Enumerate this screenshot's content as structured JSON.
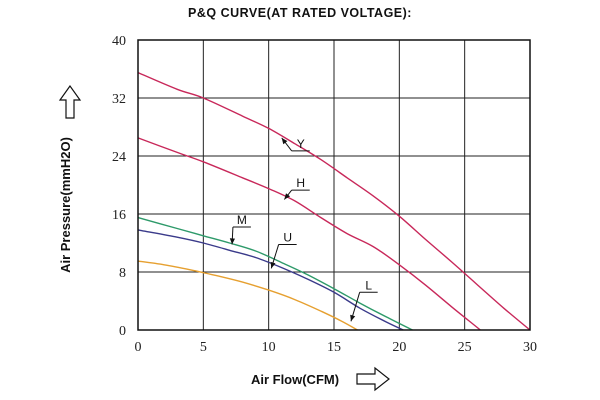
{
  "chart_data": {
    "type": "line",
    "title": "P&Q CURVE(AT RATED VOLTAGE):",
    "xlabel": "Air Flow(CFM)",
    "ylabel": "Air Pressure(mmH2O)",
    "xlim": [
      0,
      30
    ],
    "ylim": [
      0,
      40
    ],
    "xticks": [
      0,
      5,
      10,
      15,
      20,
      25,
      30
    ],
    "yticks": [
      0,
      8,
      16,
      24,
      32,
      40
    ],
    "grid": true,
    "series": [
      {
        "name": "Y",
        "color": "#c8285a",
        "label_at": [
          12.3,
          24.7
        ],
        "pointer_at": [
          11.0,
          26.5
        ],
        "x": [
          0,
          3,
          5,
          8,
          10,
          12,
          14,
          16,
          18,
          20,
          22,
          24,
          26,
          28,
          30
        ],
        "y": [
          35.5,
          33.2,
          32.0,
          29.5,
          27.8,
          25.7,
          23.5,
          21.0,
          18.5,
          15.7,
          12.5,
          9.4,
          6.2,
          3.0,
          0.0
        ]
      },
      {
        "name": "H",
        "color": "#c8285a",
        "label_at": [
          12.3,
          19.3
        ],
        "pointer_at": [
          11.2,
          18.0
        ],
        "x": [
          0,
          3,
          5,
          8,
          10,
          12,
          14,
          16,
          18,
          20,
          22,
          24,
          26.2
        ],
        "y": [
          26.5,
          24.5,
          23.2,
          21.0,
          19.5,
          17.8,
          15.5,
          13.3,
          11.5,
          9.0,
          6.2,
          3.2,
          0.0
        ]
      },
      {
        "name": "M",
        "color": "#2e9a6a",
        "label_at": [
          7.8,
          14.2
        ],
        "pointer_at": [
          7.2,
          11.8
        ],
        "x": [
          0,
          3,
          5,
          7,
          9,
          11,
          13,
          15,
          17,
          19,
          21
        ],
        "y": [
          15.5,
          14.0,
          13.0,
          12.0,
          10.9,
          9.3,
          7.6,
          5.7,
          3.7,
          1.8,
          0.0
        ]
      },
      {
        "name": "U",
        "color": "#3a3a8a",
        "label_at": [
          11.3,
          11.8
        ],
        "pointer_at": [
          10.2,
          8.5
        ],
        "x": [
          0,
          3,
          5,
          7,
          9,
          11,
          13,
          15,
          17,
          19,
          20.3
        ],
        "y": [
          13.8,
          12.8,
          12.0,
          11.0,
          10.0,
          8.6,
          7.0,
          5.2,
          3.0,
          1.1,
          0.0
        ]
      },
      {
        "name": "L",
        "color": "#e6a030",
        "label_at": [
          17.5,
          5.2
        ],
        "pointer_at": [
          16.3,
          1.2
        ],
        "x": [
          0,
          2,
          4,
          6,
          8,
          10,
          12,
          14,
          15.5,
          16.8
        ],
        "y": [
          9.5,
          9.0,
          8.3,
          7.5,
          6.6,
          5.5,
          4.2,
          2.6,
          1.3,
          0.0
        ]
      }
    ]
  }
}
